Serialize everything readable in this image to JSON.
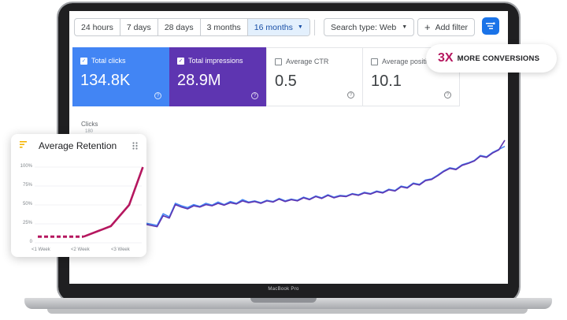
{
  "toolbar": {
    "ranges": [
      "24 hours",
      "7 days",
      "28 days",
      "3 months",
      "16 months"
    ],
    "active_range": "16 months",
    "search_type": "Search type: Web",
    "add_filter": "Add filter"
  },
  "metrics": [
    {
      "label": "Total clicks",
      "value": "134.8K",
      "checked": true,
      "color": "#4285f4"
    },
    {
      "label": "Total impressions",
      "value": "28.9M",
      "checked": true,
      "color": "#5e35b1"
    },
    {
      "label": "Average CTR",
      "value": "0.5",
      "checked": false
    },
    {
      "label": "Average position",
      "value": "10.1",
      "checked": false
    }
  ],
  "chart": {
    "y_label": "Clicks",
    "y_tick_top": "180"
  },
  "badge": {
    "big": "3X",
    "text": "MORE CONVERSIONS"
  },
  "retention": {
    "title": "Average Retention",
    "y_ticks": [
      "100%",
      "75%",
      "50%",
      "25%",
      "0"
    ],
    "x_ticks": [
      "<1 Week",
      "<2 Week",
      "<3 Week"
    ],
    "accent": "#b5175f"
  },
  "laptop": {
    "model": "MacBook Pro"
  },
  "chart_data": [
    {
      "type": "line",
      "title": "",
      "xlabel": "",
      "ylabel": "Clicks",
      "y_tick_top": 180,
      "grid": false,
      "series": [
        {
          "color": "#4285f4",
          "values": [
            40,
            38,
            36,
            55,
            50,
            72,
            68,
            65,
            70,
            67,
            72,
            69,
            74,
            70,
            75,
            72,
            78,
            74,
            76,
            73,
            77,
            75,
            80,
            76,
            79,
            77,
            82,
            79,
            84,
            81,
            86,
            82,
            85,
            84,
            88,
            86,
            90,
            88,
            92,
            90,
            95,
            93,
            100,
            98,
            105,
            103,
            110,
            112,
            118,
            125,
            130,
            128,
            135,
            138,
            142,
            150,
            148,
            155,
            160,
            165
          ]
        },
        {
          "color": "#5e35b1",
          "values": [
            38,
            36,
            34,
            52,
            48,
            70,
            66,
            63,
            68,
            66,
            70,
            68,
            72,
            69,
            73,
            71,
            76,
            73,
            75,
            72,
            76,
            74,
            79,
            75,
            78,
            76,
            81,
            78,
            83,
            80,
            85,
            81,
            84,
            83,
            87,
            85,
            89,
            87,
            91,
            89,
            94,
            92,
            99,
            97,
            104,
            102,
            109,
            111,
            117,
            124,
            129,
            127,
            134,
            137,
            141,
            149,
            147,
            154,
            159,
            175
          ]
        }
      ]
    },
    {
      "type": "line",
      "title": "Average Retention",
      "categories": [
        "<1 Week",
        "<2 Week",
        "<3 Week"
      ],
      "ylim": [
        0,
        100
      ],
      "series": [
        {
          "color": "#b5175f",
          "x": [
            0.0,
            0.25,
            0.5,
            0.75,
            1.0,
            1.6,
            2.0,
            2.3
          ],
          "values": [
            8,
            8,
            8,
            8,
            8,
            22,
            50,
            100
          ]
        }
      ]
    }
  ]
}
